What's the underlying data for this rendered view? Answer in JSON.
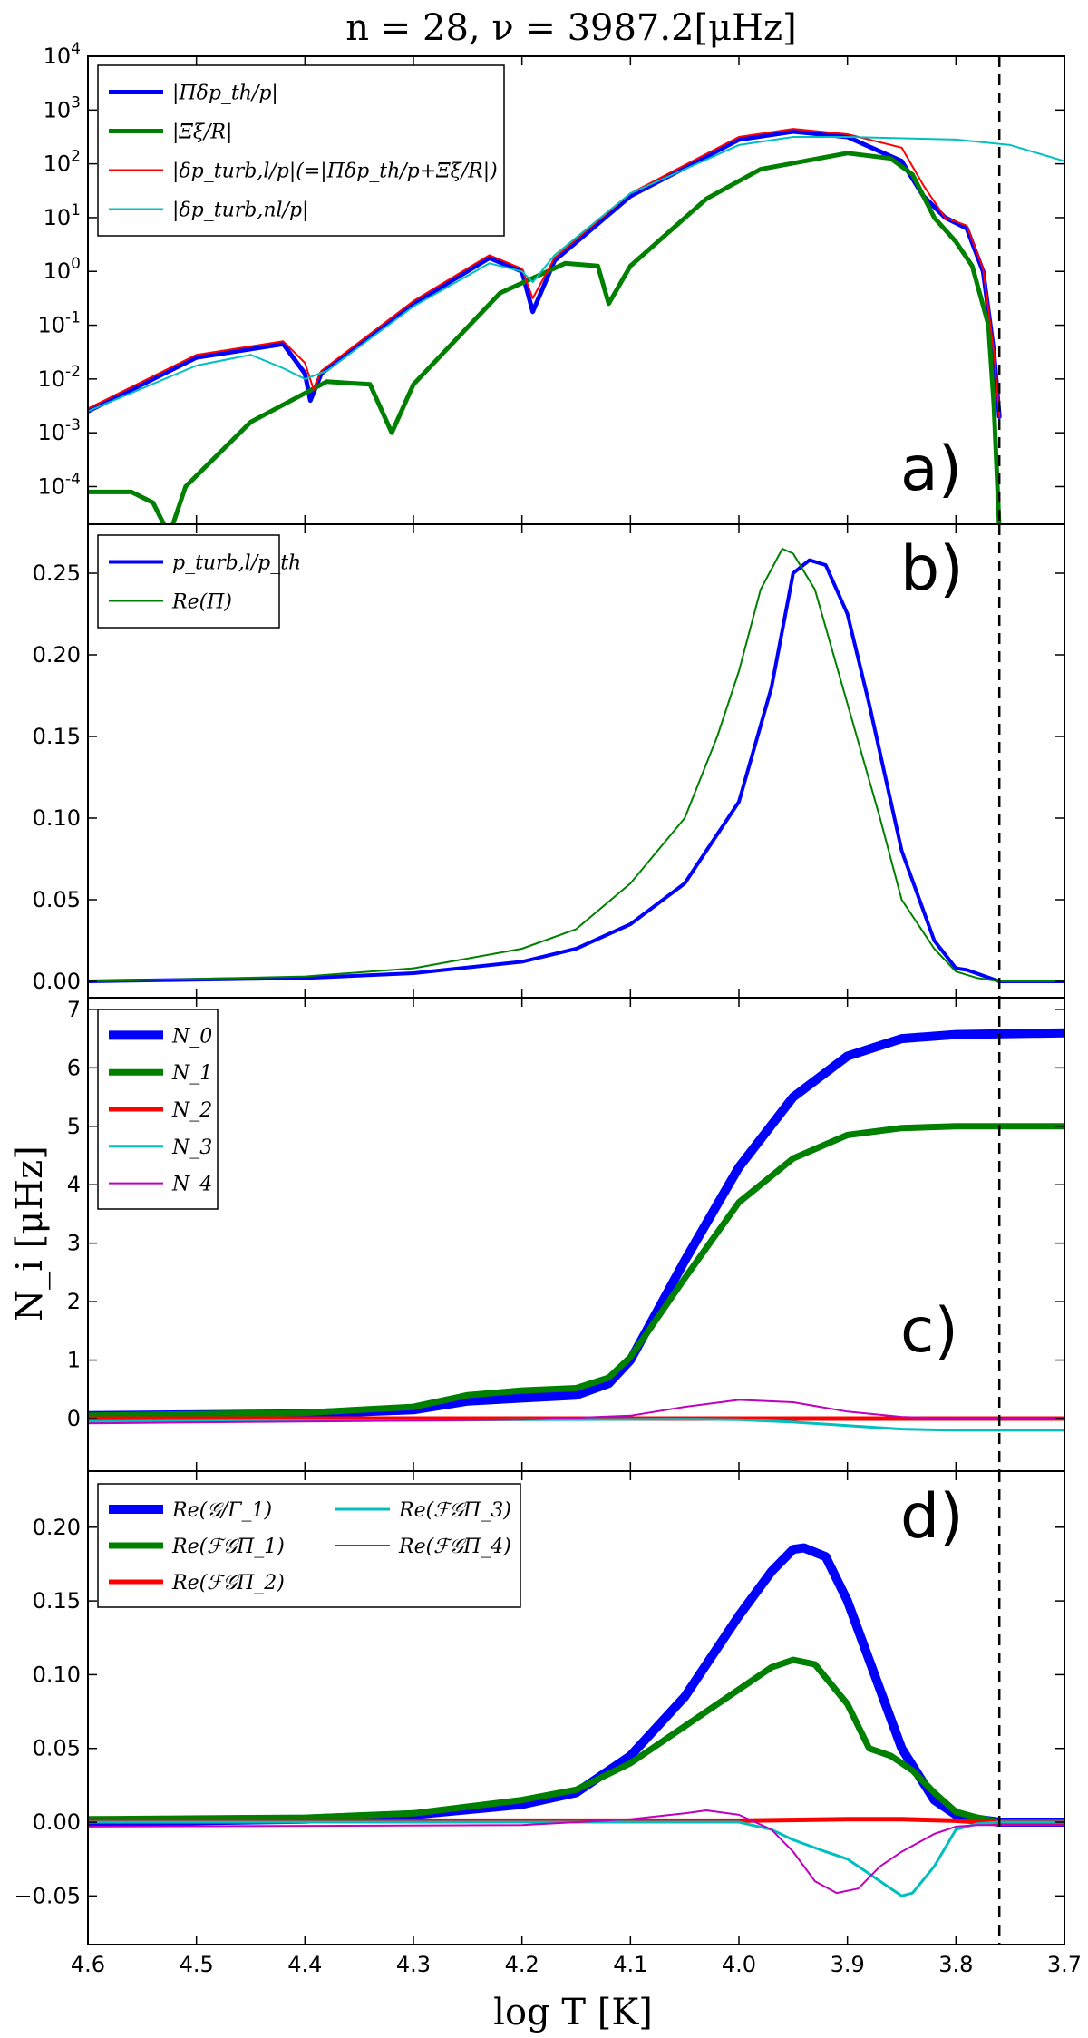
{
  "figure": {
    "title": "n = 28, ν = 3987.2[μHz]",
    "xlabel": "log T [K]",
    "xlim": [
      4.6,
      3.7
    ],
    "xticks": [
      4.6,
      4.5,
      4.4,
      4.3,
      4.2,
      4.1,
      4.0,
      3.9,
      3.8,
      3.7
    ],
    "xtick_labels": [
      "4.6",
      "4.5",
      "4.4",
      "4.3",
      "4.2",
      "4.1",
      "4.0",
      "3.9",
      "3.8",
      "3.7"
    ],
    "dashed_line_x": 3.76,
    "colors": {
      "blue": "#0000ff",
      "green": "#008000",
      "red": "#ff0000",
      "cyan": "#00bfbf",
      "magenta": "#bf00bf"
    }
  },
  "chart_data": [
    {
      "panel": "a)",
      "type": "line",
      "yscale": "log",
      "ylim": [
        -4.7,
        4
      ],
      "yticks": [
        -4,
        -3,
        -2,
        -1,
        0,
        1,
        2,
        3,
        4
      ],
      "ytick_labels": [
        "10^-4",
        "10^-3",
        "10^-2",
        "10^-1",
        "10^0",
        "10^1",
        "10^2",
        "10^3",
        "10^4"
      ],
      "legend": "top-left",
      "series": [
        {
          "name": "|Πδp_th/p|",
          "color": "blue",
          "width": 5,
          "x": [
            4.6,
            4.5,
            4.42,
            4.4,
            4.395,
            4.385,
            4.3,
            4.23,
            4.2,
            4.19,
            4.17,
            4.1,
            4.0,
            3.95,
            3.9,
            3.85,
            3.83,
            3.81,
            3.79,
            3.775,
            3.765,
            3.76
          ],
          "log10y": [
            -2.6,
            -1.6,
            -1.35,
            -1.9,
            -2.4,
            -1.9,
            -0.6,
            0.25,
            0.0,
            -0.75,
            0.2,
            1.4,
            2.45,
            2.6,
            2.5,
            2.05,
            1.4,
            1.0,
            0.8,
            0.0,
            -1.5,
            -2.7
          ]
        },
        {
          "name": "|Ξξ/R|",
          "color": "green",
          "width": 5,
          "x": [
            4.6,
            4.56,
            4.54,
            4.525,
            4.51,
            4.45,
            4.38,
            4.34,
            4.32,
            4.3,
            4.22,
            4.16,
            4.13,
            4.12,
            4.1,
            4.03,
            3.98,
            3.9,
            3.86,
            3.84,
            3.82,
            3.8,
            3.785,
            3.77,
            3.765,
            3.76
          ],
          "log10y": [
            -4.1,
            -4.1,
            -4.3,
            -4.9,
            -4.0,
            -2.8,
            -2.05,
            -2.1,
            -3.0,
            -2.1,
            -0.4,
            0.15,
            0.1,
            -0.6,
            0.1,
            1.35,
            1.9,
            2.2,
            2.1,
            1.8,
            1.0,
            0.55,
            0.1,
            -1.0,
            -2.5,
            -4.8
          ]
        },
        {
          "name": "|δp_turb,l/p|(=|Πδp_th/p+Ξξ/R|)",
          "color": "red",
          "width": 2,
          "x": [
            4.6,
            4.5,
            4.42,
            4.4,
            4.392,
            4.385,
            4.3,
            4.23,
            4.2,
            4.19,
            4.17,
            4.1,
            4.0,
            3.95,
            3.9,
            3.85,
            3.83,
            3.81,
            3.79,
            3.775,
            3.765,
            3.76
          ],
          "log10y": [
            -2.55,
            -1.55,
            -1.3,
            -1.7,
            -2.2,
            -1.85,
            -0.55,
            0.3,
            0.05,
            -0.5,
            0.25,
            1.45,
            2.5,
            2.65,
            2.55,
            2.3,
            1.6,
            1.0,
            0.85,
            0.05,
            -1.5,
            -2.7
          ]
        },
        {
          "name": "|δp_turb,nl/p|",
          "color": "cyan",
          "width": 2,
          "x": [
            4.6,
            4.5,
            4.45,
            4.42,
            4.4,
            4.38,
            4.3,
            4.23,
            4.2,
            4.19,
            4.17,
            4.1,
            4.0,
            3.95,
            3.9,
            3.8,
            3.75,
            3.7
          ],
          "log10y": [
            -2.6,
            -1.75,
            -1.55,
            -1.8,
            -2.0,
            -1.85,
            -0.65,
            0.15,
            0.0,
            -0.2,
            0.3,
            1.45,
            2.35,
            2.5,
            2.5,
            2.45,
            2.35,
            2.05
          ]
        }
      ]
    },
    {
      "panel": "b)",
      "type": "line",
      "yscale": "linear",
      "ylim": [
        -0.01,
        0.28
      ],
      "yticks": [
        0.0,
        0.05,
        0.1,
        0.15,
        0.2,
        0.25
      ],
      "ytick_labels": [
        "0.00",
        "0.05",
        "0.10",
        "0.15",
        "0.20",
        "0.25"
      ],
      "legend": "top-left",
      "series": [
        {
          "name": "p_turb,l/p_th",
          "color": "blue",
          "width": 4,
          "x": [
            4.6,
            4.4,
            4.3,
            4.2,
            4.15,
            4.1,
            4.05,
            4.0,
            3.97,
            3.95,
            3.935,
            3.92,
            3.9,
            3.88,
            3.85,
            3.82,
            3.8,
            3.79,
            3.76,
            3.7
          ],
          "y": [
            0.0,
            0.002,
            0.005,
            0.012,
            0.02,
            0.035,
            0.06,
            0.11,
            0.18,
            0.25,
            0.258,
            0.255,
            0.225,
            0.17,
            0.08,
            0.025,
            0.008,
            0.007,
            0.0,
            0.0
          ]
        },
        {
          "name": "Re(Π)",
          "color": "green",
          "width": 2,
          "x": [
            4.6,
            4.4,
            4.3,
            4.2,
            4.15,
            4.1,
            4.05,
            4.02,
            4.0,
            3.98,
            3.96,
            3.95,
            3.93,
            3.9,
            3.87,
            3.85,
            3.82,
            3.8,
            3.78,
            3.76,
            3.7
          ],
          "y": [
            0.0,
            0.003,
            0.008,
            0.02,
            0.032,
            0.06,
            0.1,
            0.15,
            0.19,
            0.24,
            0.265,
            0.262,
            0.24,
            0.17,
            0.1,
            0.05,
            0.02,
            0.006,
            0.002,
            0.0,
            0.0
          ]
        }
      ]
    },
    {
      "panel": "c)",
      "type": "line",
      "yscale": "linear",
      "ylim": [
        -0.9,
        7.2
      ],
      "yticks": [
        0,
        1,
        2,
        3,
        4,
        5,
        6,
        7
      ],
      "ytick_labels": [
        "0",
        "1",
        "2",
        "3",
        "4",
        "5",
        "6",
        "7"
      ],
      "ylabel": "N_i [μHz]",
      "legend": "top-left",
      "series": [
        {
          "name": "N_0",
          "color": "blue",
          "width": 10,
          "x": [
            4.6,
            4.4,
            4.3,
            4.25,
            4.2,
            4.15,
            4.12,
            4.1,
            4.05,
            4.0,
            3.95,
            3.9,
            3.85,
            3.8,
            3.7
          ],
          "y": [
            0.05,
            0.08,
            0.15,
            0.3,
            0.35,
            0.4,
            0.6,
            1.0,
            2.7,
            4.3,
            5.5,
            6.2,
            6.5,
            6.57,
            6.6
          ]
        },
        {
          "name": "N_1",
          "color": "green",
          "width": 7,
          "x": [
            4.6,
            4.4,
            4.3,
            4.25,
            4.2,
            4.15,
            4.12,
            4.1,
            4.05,
            4.0,
            3.95,
            3.9,
            3.85,
            3.8,
            3.7
          ],
          "y": [
            0.05,
            0.1,
            0.2,
            0.4,
            0.48,
            0.52,
            0.7,
            1.05,
            2.4,
            3.7,
            4.45,
            4.85,
            4.97,
            5.0,
            5.0
          ]
        },
        {
          "name": "N_2",
          "color": "red",
          "width": 5,
          "x": [
            4.6,
            4.3,
            4.0,
            3.9,
            3.8,
            3.7
          ],
          "y": [
            0.0,
            0.0,
            0.0,
            0.0,
            0.0,
            0.0
          ]
        },
        {
          "name": "N_3",
          "color": "cyan",
          "width": 3,
          "x": [
            4.6,
            4.2,
            4.05,
            4.0,
            3.95,
            3.9,
            3.85,
            3.8,
            3.7
          ],
          "y": [
            -0.05,
            -0.02,
            -0.01,
            -0.02,
            -0.06,
            -0.12,
            -0.18,
            -0.2,
            -0.2
          ]
        },
        {
          "name": "N_4",
          "color": "magenta",
          "width": 2,
          "x": [
            4.6,
            4.2,
            4.1,
            4.05,
            4.0,
            3.95,
            3.9,
            3.85,
            3.8,
            3.7
          ],
          "y": [
            -0.08,
            -0.02,
            0.05,
            0.2,
            0.32,
            0.28,
            0.12,
            0.03,
            0.0,
            0.0
          ]
        }
      ]
    },
    {
      "panel": "d)",
      "type": "line",
      "yscale": "linear",
      "ylim": [
        -0.083,
        0.238
      ],
      "yticks": [
        -0.05,
        0.0,
        0.05,
        0.1,
        0.15,
        0.2
      ],
      "ytick_labels": [
        "−0.05",
        "0.00",
        "0.05",
        "0.10",
        "0.15",
        "0.20"
      ],
      "legend": "top-left",
      "series": [
        {
          "name": "Re(𝒢/Γ_1)",
          "color": "blue",
          "width": 10,
          "x": [
            4.6,
            4.4,
            4.3,
            4.2,
            4.15,
            4.1,
            4.05,
            4.0,
            3.97,
            3.95,
            3.94,
            3.92,
            3.9,
            3.88,
            3.85,
            3.82,
            3.8,
            3.78,
            3.76,
            3.7
          ],
          "y": [
            0.0,
            0.002,
            0.005,
            0.012,
            0.02,
            0.045,
            0.085,
            0.14,
            0.17,
            0.185,
            0.186,
            0.18,
            0.15,
            0.11,
            0.05,
            0.015,
            0.005,
            0.002,
            0.0,
            0.0
          ]
        },
        {
          "name": "Re(ℱ𝒢Π_1)",
          "color": "green",
          "width": 7,
          "x": [
            4.6,
            4.4,
            4.3,
            4.2,
            4.15,
            4.1,
            4.05,
            4.0,
            3.97,
            3.95,
            3.93,
            3.9,
            3.88,
            3.86,
            3.84,
            3.82,
            3.8,
            3.78,
            3.76,
            3.7
          ],
          "y": [
            0.002,
            0.003,
            0.006,
            0.015,
            0.022,
            0.04,
            0.065,
            0.09,
            0.105,
            0.11,
            0.107,
            0.08,
            0.05,
            0.045,
            0.035,
            0.02,
            0.007,
            0.003,
            0.0,
            0.0
          ]
        },
        {
          "name": "Re(ℱ𝒢Π_2)",
          "color": "red",
          "width": 5,
          "x": [
            4.6,
            4.2,
            4.0,
            3.9,
            3.85,
            3.8,
            3.78,
            3.76,
            3.7
          ],
          "y": [
            0.001,
            0.001,
            0.001,
            0.002,
            0.002,
            0.001,
            0.0,
            0.0,
            0.0
          ]
        },
        {
          "name": "Re(ℱ𝒢Π_3)",
          "color": "cyan",
          "width": 3,
          "x": [
            4.6,
            4.2,
            4.0,
            3.97,
            3.95,
            3.92,
            3.9,
            3.88,
            3.86,
            3.85,
            3.84,
            3.82,
            3.8,
            3.78,
            3.76,
            3.7
          ],
          "y": [
            0.0,
            0.0,
            0.0,
            -0.005,
            -0.012,
            -0.02,
            -0.025,
            -0.035,
            -0.045,
            -0.05,
            -0.048,
            -0.03,
            -0.005,
            -0.001,
            0.0,
            0.0
          ]
        },
        {
          "name": "Re(ℱ𝒢Π_4)",
          "color": "magenta",
          "width": 2,
          "x": [
            4.6,
            4.2,
            4.1,
            4.05,
            4.03,
            4.0,
            3.97,
            3.95,
            3.93,
            3.91,
            3.89,
            3.87,
            3.85,
            3.82,
            3.8,
            3.78,
            3.76,
            3.7
          ],
          "y": [
            -0.003,
            -0.002,
            0.002,
            0.006,
            0.008,
            0.005,
            -0.005,
            -0.02,
            -0.04,
            -0.048,
            -0.045,
            -0.03,
            -0.02,
            -0.008,
            -0.003,
            -0.002,
            -0.002,
            -0.002
          ]
        }
      ]
    }
  ]
}
